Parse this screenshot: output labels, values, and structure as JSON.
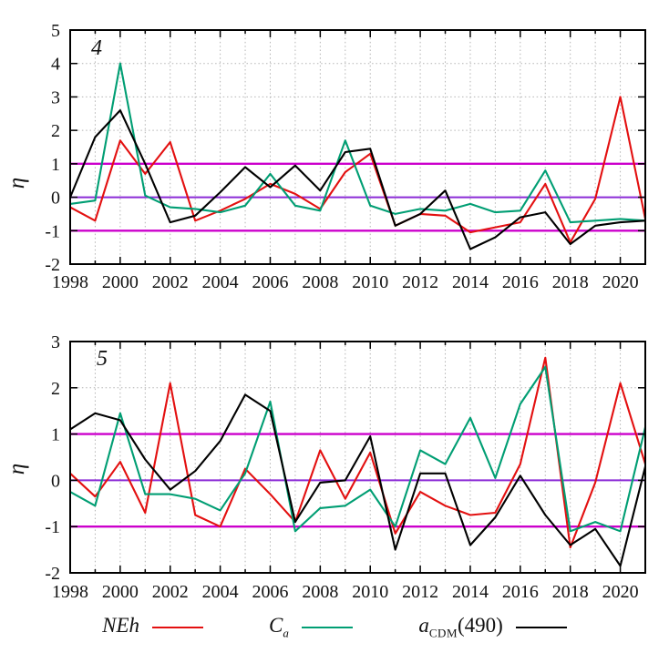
{
  "figure": {
    "ylabel": "η",
    "panels": [
      {
        "label": "4"
      },
      {
        "label": "5"
      }
    ]
  },
  "legend": {
    "items": [
      {
        "main": "NEh",
        "sub": "",
        "suffix": "",
        "color": "#e31010"
      },
      {
        "main": "C",
        "sub": "a",
        "suffix": "",
        "color": "#009e73"
      },
      {
        "main": "a",
        "sub": "CDM",
        "suffix": "(490)",
        "color": "#000000"
      }
    ]
  },
  "chart_data": [
    {
      "type": "line",
      "panel_label": "4",
      "ylabel": "η",
      "x": [
        1998,
        1999,
        2000,
        2001,
        2002,
        2003,
        2004,
        2005,
        2006,
        2007,
        2008,
        2009,
        2010,
        2011,
        2012,
        2013,
        2014,
        2015,
        2016,
        2017,
        2018,
        2019,
        2020,
        2021
      ],
      "xtick_labels": [
        1998,
        2000,
        2002,
        2004,
        2006,
        2008,
        2010,
        2012,
        2014,
        2016,
        2018,
        2020
      ],
      "xlim": [
        1998,
        2021
      ],
      "ylim": [
        -2,
        5
      ],
      "yticks": [
        -2,
        -1,
        0,
        1,
        2,
        3,
        4,
        5
      ],
      "grid": true,
      "legend_position": "below-figure",
      "reference_lines": [
        {
          "y": 1,
          "color": "#cc00cc"
        },
        {
          "y": 0,
          "color": "#8b2bd6"
        },
        {
          "y": -1,
          "color": "#cc00cc"
        }
      ],
      "series": [
        {
          "name": "NEh",
          "color": "#e31010",
          "values": [
            -0.3,
            -0.7,
            1.7,
            0.7,
            1.65,
            -0.7,
            -0.4,
            -0.05,
            0.4,
            0.1,
            -0.35,
            0.75,
            1.3,
            -0.85,
            -0.5,
            -0.55,
            -1.05,
            -0.9,
            -0.75,
            0.4,
            -1.35,
            -0.05,
            3.0,
            -0.65
          ]
        },
        {
          "name": "Ca",
          "color": "#009e73",
          "values": [
            -0.2,
            -0.1,
            4.0,
            0.05,
            -0.3,
            -0.35,
            -0.45,
            -0.25,
            0.7,
            -0.25,
            -0.4,
            1.7,
            -0.25,
            -0.5,
            -0.35,
            -0.4,
            -0.2,
            -0.45,
            -0.4,
            0.8,
            -0.75,
            -0.7,
            -0.65,
            -0.7
          ]
        },
        {
          "name": "aCDM(490)",
          "color": "#000000",
          "values": [
            0.0,
            1.8,
            2.6,
            1.0,
            -0.75,
            -0.55,
            0.15,
            0.9,
            0.3,
            0.95,
            0.2,
            1.35,
            1.45,
            -0.85,
            -0.5,
            0.2,
            -1.55,
            -1.2,
            -0.6,
            -0.45,
            -1.4,
            -0.85,
            -0.75,
            -0.7
          ]
        }
      ]
    },
    {
      "type": "line",
      "panel_label": "5",
      "ylabel": "η",
      "x": [
        1998,
        1999,
        2000,
        2001,
        2002,
        2003,
        2004,
        2005,
        2006,
        2007,
        2008,
        2009,
        2010,
        2011,
        2012,
        2013,
        2014,
        2015,
        2016,
        2017,
        2018,
        2019,
        2020,
        2021
      ],
      "xtick_labels": [
        1998,
        2000,
        2002,
        2004,
        2006,
        2008,
        2010,
        2012,
        2014,
        2016,
        2018,
        2020
      ],
      "xlim": [
        1998,
        2021
      ],
      "ylim": [
        -2,
        3
      ],
      "yticks": [
        -2,
        -1,
        0,
        1,
        2,
        3
      ],
      "grid": true,
      "legend_position": "below-figure",
      "reference_lines": [
        {
          "y": 1,
          "color": "#cc00cc"
        },
        {
          "y": 0,
          "color": "#8b2bd6"
        },
        {
          "y": -1,
          "color": "#cc00cc"
        }
      ],
      "series": [
        {
          "name": "NEh",
          "color": "#e31010",
          "values": [
            0.15,
            -0.35,
            0.4,
            -0.7,
            2.1,
            -0.75,
            -1.0,
            0.25,
            -0.3,
            -0.9,
            0.65,
            -0.4,
            0.6,
            -1.15,
            -0.25,
            -0.55,
            -0.75,
            -0.7,
            0.35,
            2.65,
            -1.45,
            -0.05,
            2.1,
            0.35
          ]
        },
        {
          "name": "Ca",
          "color": "#009e73",
          "values": [
            -0.25,
            -0.55,
            1.45,
            -0.3,
            -0.3,
            -0.4,
            -0.65,
            0.15,
            1.7,
            -1.1,
            -0.6,
            -0.55,
            -0.2,
            -1.0,
            0.65,
            0.35,
            1.35,
            0.05,
            1.65,
            2.45,
            -1.1,
            -0.9,
            -1.1,
            1.15
          ]
        },
        {
          "name": "aCDM(490)",
          "color": "#000000",
          "values": [
            1.1,
            1.45,
            1.3,
            0.45,
            -0.2,
            0.2,
            0.85,
            1.85,
            1.5,
            -0.9,
            -0.05,
            0.0,
            0.95,
            -1.5,
            0.15,
            0.15,
            -1.4,
            -0.8,
            0.1,
            -0.75,
            -1.4,
            -1.05,
            -1.85,
            0.3
          ]
        }
      ]
    }
  ]
}
